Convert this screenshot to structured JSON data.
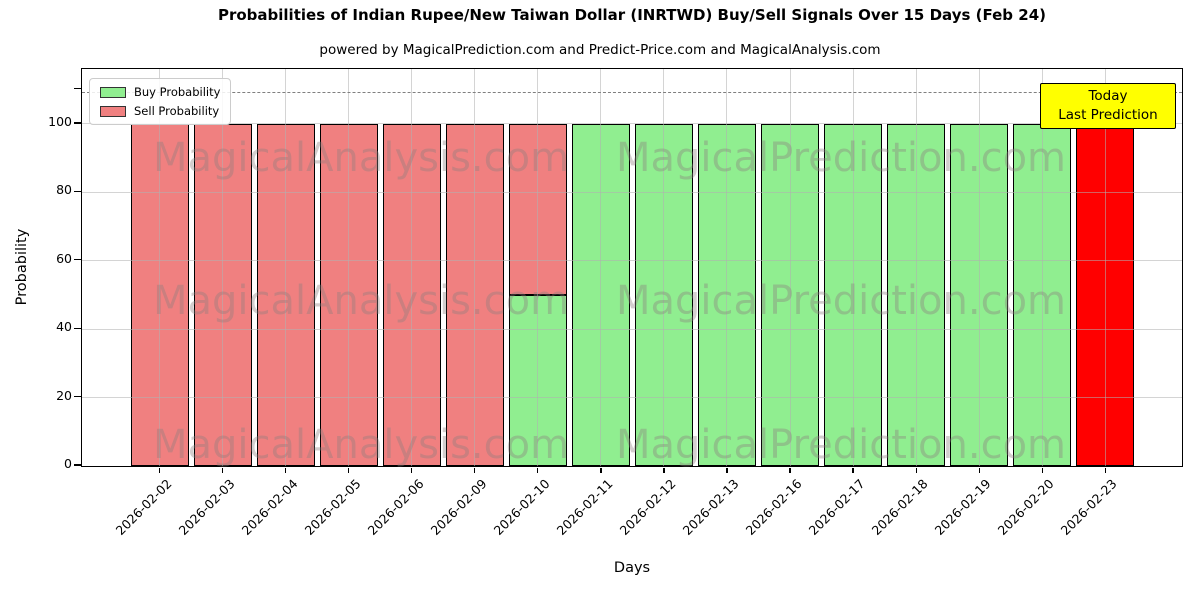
{
  "watermarks": {
    "left": "MagicalAnalysis.com",
    "right": "MagicalPrediction.com"
  },
  "annotation": {
    "line1": "Today",
    "line2": "Last Prediction"
  },
  "colors": {
    "buy": "#90ee90",
    "sell": "#f08080",
    "today_bar": "#ff0000",
    "today_edge": "#ffa500",
    "bar_edge": "#000000",
    "annotation_bg": "#ffff00",
    "grid": "#b0b0b0",
    "dashed_line": "#7f7f7f"
  },
  "chart_data": {
    "type": "bar",
    "stacked": true,
    "title": "Probabilities of Indian Rupee/New Taiwan Dollar (INRTWD) Buy/Sell Signals Over 15 Days (Feb 24)",
    "subtitle": "powered by MagicalPrediction.com and Predict-Price.com and MagicalAnalysis.com",
    "xlabel": "Days",
    "ylabel": "Probability",
    "ylim": [
      0,
      116.7
    ],
    "yticks": [
      0,
      20,
      40,
      60,
      80,
      100
    ],
    "dashed_line_y": 110,
    "grid": true,
    "legend_position": "upper left",
    "categories": [
      "2026-02-02",
      "2026-02-03",
      "2026-02-04",
      "2026-02-05",
      "2026-02-06",
      "2026-02-09",
      "2026-02-10",
      "2026-02-11",
      "2026-02-12",
      "2026-02-13",
      "2026-02-16",
      "2026-02-17",
      "2026-02-18",
      "2026-02-19",
      "2026-02-20",
      "2026-02-23"
    ],
    "series": [
      {
        "name": "Buy Probability",
        "color_key": "buy",
        "values": [
          0,
          0,
          0,
          0,
          0,
          0,
          50,
          100,
          100,
          100,
          100,
          100,
          100,
          100,
          100,
          0
        ]
      },
      {
        "name": "Sell Probability",
        "color_key": "sell",
        "values": [
          100,
          100,
          100,
          100,
          100,
          100,
          50,
          0,
          0,
          0,
          0,
          0,
          0,
          0,
          0,
          100
        ]
      }
    ],
    "today_index": 15
  }
}
